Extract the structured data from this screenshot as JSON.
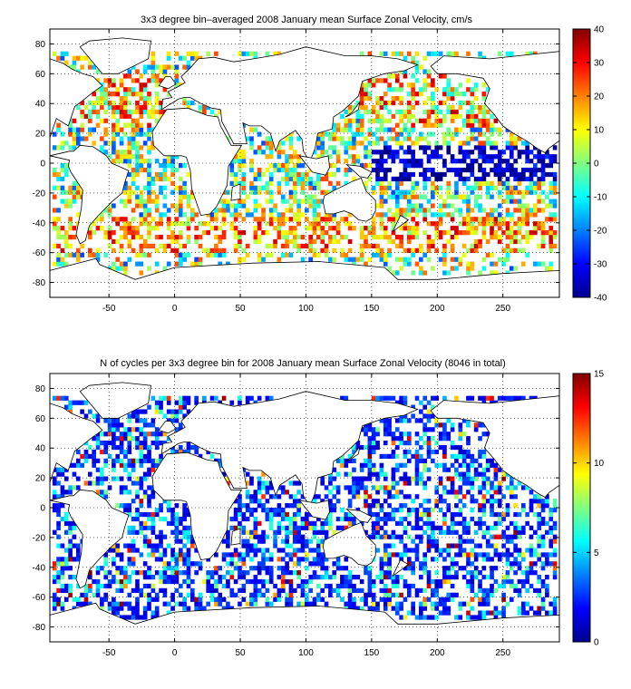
{
  "chart_data": [
    {
      "type": "heatmap",
      "title": "3x3 degree bin–averaged 2008 January mean Surface Zonal Velocity, cm/s",
      "xlim": [
        -95,
        293
      ],
      "ylim": [
        -90,
        90
      ],
      "x_ticks": [
        -50,
        0,
        50,
        100,
        150,
        200,
        250
      ],
      "y_ticks": [
        80,
        60,
        40,
        20,
        0,
        -20,
        -40,
        -60,
        -80
      ],
      "grid": true,
      "colorbar": {
        "min": -40,
        "max": 40,
        "ticks": [
          40,
          30,
          20,
          10,
          0,
          -10,
          -20,
          -30,
          -40
        ],
        "colormap": "jet"
      },
      "bin_size_deg": 3,
      "cells_note": "scattered 3x3 degree bins over ocean areas"
    },
    {
      "type": "heatmap",
      "title": "N of cycles per 3x3 degree bin for 2008 January mean Surface Zonal Velocity (8046 in total)",
      "xlim": [
        -95,
        293
      ],
      "ylim": [
        -90,
        90
      ],
      "x_ticks": [
        -50,
        0,
        50,
        100,
        150,
        200,
        250
      ],
      "y_ticks": [
        80,
        60,
        40,
        20,
        0,
        -20,
        -40,
        -60,
        -80
      ],
      "grid": true,
      "colorbar": {
        "min": 0,
        "max": 15,
        "ticks": [
          15,
          10,
          5,
          0
        ],
        "colormap": "jet"
      },
      "total_cycles": 8046,
      "bin_size_deg": 3
    }
  ]
}
